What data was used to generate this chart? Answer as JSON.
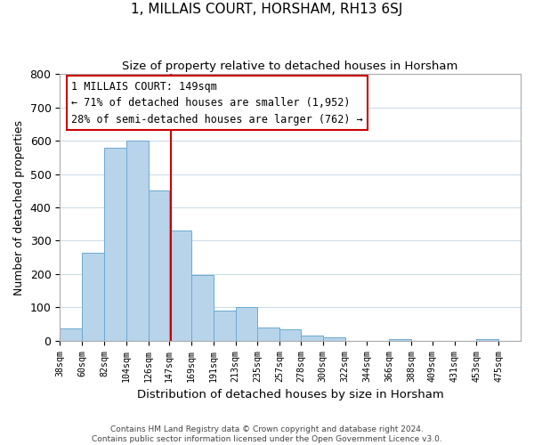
{
  "title": "1, MILLAIS COURT, HORSHAM, RH13 6SJ",
  "subtitle": "Size of property relative to detached houses in Horsham",
  "xlabel": "Distribution of detached houses by size in Horsham",
  "ylabel": "Number of detached properties",
  "bar_left_edges": [
    38,
    60,
    82,
    104,
    126,
    147,
    169,
    191,
    213,
    235,
    257,
    278,
    300,
    322,
    344,
    366,
    388,
    409,
    431,
    453
  ],
  "bar_widths": [
    22,
    22,
    22,
    22,
    21,
    22,
    22,
    22,
    22,
    22,
    21,
    22,
    22,
    22,
    22,
    22,
    21,
    22,
    22,
    22
  ],
  "bar_heights": [
    38,
    265,
    580,
    600,
    452,
    330,
    196,
    91,
    100,
    40,
    34,
    16,
    10,
    0,
    0,
    5,
    0,
    0,
    0,
    5
  ],
  "tick_labels": [
    "38sqm",
    "60sqm",
    "82sqm",
    "104sqm",
    "126sqm",
    "147sqm",
    "169sqm",
    "191sqm",
    "213sqm",
    "235sqm",
    "257sqm",
    "278sqm",
    "300sqm",
    "322sqm",
    "344sqm",
    "366sqm",
    "388sqm",
    "409sqm",
    "431sqm",
    "453sqm",
    "475sqm"
  ],
  "tick_positions": [
    38,
    60,
    82,
    104,
    126,
    147,
    169,
    191,
    213,
    235,
    257,
    278,
    300,
    322,
    344,
    366,
    388,
    409,
    431,
    453,
    475
  ],
  "bar_color": "#b8d4ea",
  "bar_edge_color": "#6aaad4",
  "vline_x": 149,
  "vline_color": "#cc0000",
  "annotation_text": "1 MILLAIS COURT: 149sqm\n← 71% of detached houses are smaller (1,952)\n28% of semi-detached houses are larger (762) →",
  "annotation_box_color": "#ffffff",
  "annotation_box_edge": "#cc0000",
  "ylim": [
    0,
    800
  ],
  "yticks": [
    0,
    100,
    200,
    300,
    400,
    500,
    600,
    700,
    800
  ],
  "footer_line1": "Contains HM Land Registry data © Crown copyright and database right 2024.",
  "footer_line2": "Contains public sector information licensed under the Open Government Licence v3.0.",
  "bg_color": "#ffffff",
  "grid_color": "#ccdde8",
  "xlim_left": 38,
  "xlim_right": 497
}
